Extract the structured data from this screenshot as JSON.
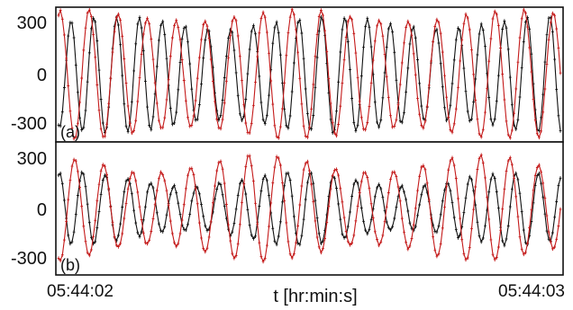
{
  "chart_data": {
    "type": "line",
    "xlabel": "t [hr:min:s]",
    "x_tick_labels": [
      "05:44:02",
      "05:44:03"
    ],
    "x_range": [
      "05:44:02",
      "05:44:03"
    ],
    "colors": {
      "series_a": "#111111",
      "series_b": "#c41a1a"
    },
    "grid": false,
    "legend": "none",
    "panels": [
      {
        "label": "(a)",
        "ylim": [
          -390,
          390
        ],
        "yticks": [
          300,
          0,
          -300
        ],
        "ytick_labels": [
          "300",
          "0",
          "-300"
        ],
        "series": [
          {
            "color": "#111111",
            "amplitude": 300,
            "cycles": 22,
            "phase_deg": 255,
            "modulation": 0.12
          },
          {
            "color": "#c41a1a",
            "amplitude": 340,
            "cycles": 17.3,
            "phase_deg": 70,
            "modulation": 0.1
          }
        ]
      },
      {
        "label": "(b)",
        "ylim": [
          -390,
          390
        ],
        "yticks": [
          300,
          0,
          -300
        ],
        "ytick_labels": [
          "300",
          "0",
          "-300"
        ],
        "series": [
          {
            "color": "#111111",
            "amplitude": 170,
            "cycles": 22,
            "phase_deg": 75,
            "modulation": 0.25
          },
          {
            "color": "#c41a1a",
            "amplitude": 260,
            "cycles": 17.3,
            "phase_deg": 250,
            "modulation": 0.2
          }
        ]
      }
    ]
  }
}
